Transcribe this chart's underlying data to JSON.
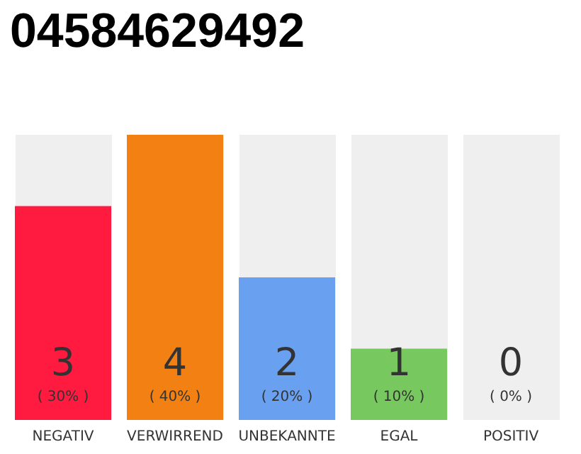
{
  "chart_data": {
    "type": "bar",
    "title": "04584629492",
    "categories": [
      "NEGATIV",
      "VERWIRREND",
      "UNBEKANNTE",
      "EGAL",
      "POSITIV"
    ],
    "values": [
      3,
      4,
      2,
      1,
      0
    ],
    "colors": [
      "#ff1a40",
      "#f38012",
      "#6aa0f0",
      "#78c860",
      "#d0d0d0"
    ],
    "value_labels": [
      "3\n( 30% )",
      "4\n( 40% )",
      "2\n( 20% )",
      "1\n( 10% )",
      "0\n( 0% )"
    ],
    "ylim": [
      0,
      4
    ],
    "tick_labels": "x"
  }
}
